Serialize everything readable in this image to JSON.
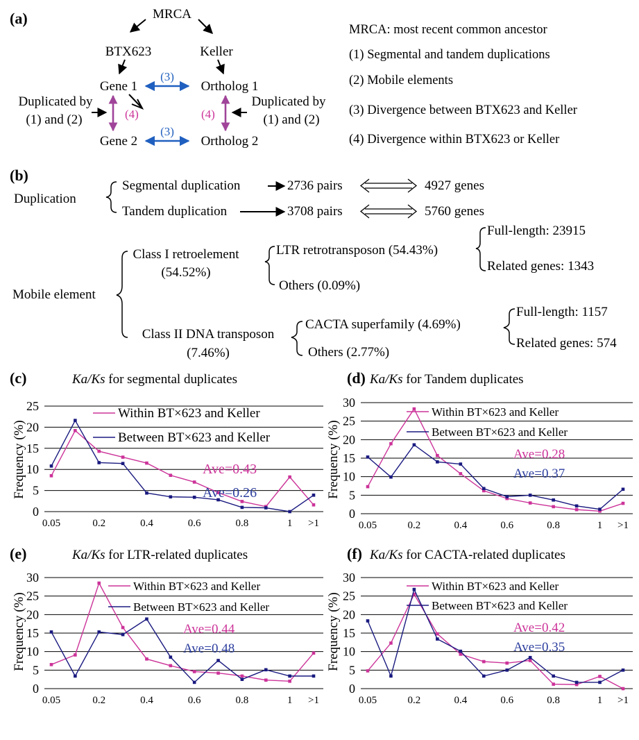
{
  "panel_a": {
    "label": "(a)",
    "mrca": "MRCA",
    "btx": "BTX623",
    "keller": "Keller",
    "gene1": "Gene 1",
    "gene2": "Gene 2",
    "ortholog1": "Ortholog 1",
    "ortholog2": "Ortholog 2",
    "div3_top": "(3)",
    "div3_bottom": "(3)",
    "div4_left": "(4)",
    "div4_right": "(4)",
    "dup_left_1": "Duplicated by",
    "dup_left_2": "(1) and (2)",
    "dup_right_1": "Duplicated by",
    "dup_right_2": "(1) and (2)",
    "legend": [
      "MRCA: most recent common ancestor",
      "(1) Segmental and tandem duplications",
      "(2) Mobile elements",
      "(3) Divergence between BTX623 and Keller",
      "(4) Divergence within BTX623 or Keller"
    ],
    "colors": {
      "blue": "#1f5fbf",
      "magenta": "#a0449a"
    }
  },
  "panel_b": {
    "label": "(b)",
    "duplication": "Duplication",
    "segmental": "Segmental duplication",
    "segmental_pairs": "2736 pairs",
    "segmental_genes": "4927 genes",
    "tandem": "Tandem duplication",
    "tandem_pairs": "3708 pairs",
    "tandem_genes": "5760 genes",
    "mobile": "Mobile element",
    "class1": "Class I retroelement",
    "class1_pct": "(54.52%)",
    "ltr": "LTR retrotransposon (54.43%)",
    "others1": "Others (0.09%)",
    "ltr_full": "Full-length: 23915",
    "ltr_related": "Related genes: 1343",
    "class2": "Class II DNA transposon",
    "class2_pct": "(7.46%)",
    "cacta": "CACTA superfamily (4.69%)",
    "others2": "Others (2.77%)",
    "cacta_full": "Full-length: 1157",
    "cacta_related": "Related genes: 574"
  },
  "chart_data": [
    {
      "type": "line",
      "panel": "(c)",
      "title_italic": "Ka/Ks",
      "title_rest": " for segmental duplicates",
      "ylabel": "Frequency (%)",
      "ylim": [
        0,
        25
      ],
      "yticks": [
        "0",
        "5",
        "10",
        "15",
        "20",
        "25"
      ],
      "categories": [
        "0.05",
        "0.1",
        "0.2",
        "0.3",
        "0.4",
        "0.5",
        "0.6",
        "0.7",
        "0.8",
        "0.9",
        "1",
        ">1"
      ],
      "xtick_labels": [
        "0.05",
        "",
        "0.2",
        "",
        "0.4",
        "",
        "0.6",
        "",
        "0.8",
        "",
        "1",
        ">1"
      ],
      "series": [
        {
          "name": "Within BT×623 and Keller",
          "color": "#cc3399",
          "values": [
            8.5,
            19.2,
            14.3,
            12.9,
            11.5,
            8.6,
            7.0,
            4.5,
            2.4,
            1.2,
            8.2,
            1.6
          ]
        },
        {
          "name": "Between BT×623 and Keller",
          "color": "#1a1a80",
          "values": [
            10.8,
            21.6,
            11.6,
            11.4,
            4.4,
            3.5,
            3.4,
            2.8,
            1.0,
            0.9,
            0.0,
            3.9
          ]
        }
      ],
      "annotations": [
        {
          "text": "Ave=0.43",
          "color": "#cc3399"
        },
        {
          "text": "Ave=0.26",
          "color": "#2c3e9e"
        }
      ]
    },
    {
      "type": "line",
      "panel": "(d)",
      "title_italic": "Ka/Ks",
      "title_rest": " for Tandem duplicates",
      "ylabel": "Frequency (%)",
      "ylim": [
        0,
        30
      ],
      "yticks": [
        "0",
        "5",
        "10",
        "15",
        "20",
        "25",
        "30"
      ],
      "categories": [
        "0.05",
        "0.1",
        "0.2",
        "0.3",
        "0.4",
        "0.5",
        "0.6",
        "0.7",
        "0.8",
        "0.9",
        "1",
        ">1"
      ],
      "xtick_labels": [
        "0.05",
        "",
        "0.2",
        "",
        "0.4",
        "",
        "0.6",
        "",
        "0.8",
        "",
        "1",
        ">1"
      ],
      "series": [
        {
          "name": "Within BT×623 and Keller",
          "color": "#cc3399",
          "values": [
            7.3,
            18.9,
            28.3,
            15.7,
            10.8,
            6.2,
            4.1,
            2.9,
            1.9,
            1.1,
            0.7,
            2.8
          ]
        },
        {
          "name": "Between BT×623 and Keller",
          "color": "#1a1a80",
          "values": [
            15.3,
            9.9,
            18.6,
            14.0,
            13.4,
            6.8,
            4.6,
            5.0,
            3.7,
            2.1,
            1.2,
            6.6
          ]
        }
      ],
      "annotations": [
        {
          "text": "Ave=0.28",
          "color": "#cc3399"
        },
        {
          "text": "Ave=0.37",
          "color": "#2c3e9e"
        }
      ]
    },
    {
      "type": "line",
      "panel": "(e)",
      "title_italic": "Ka/Ks",
      "title_rest": " for LTR-related duplicates",
      "ylabel": "Frequency (%)",
      "ylim": [
        0,
        30
      ],
      "yticks": [
        "0",
        "5",
        "10",
        "15",
        "20",
        "25",
        "30"
      ],
      "categories": [
        "0.05",
        "0.1",
        "0.2",
        "0.3",
        "0.4",
        "0.5",
        "0.6",
        "0.7",
        "0.8",
        "0.9",
        "1",
        ">1"
      ],
      "xtick_labels": [
        "0.05",
        "",
        "0.2",
        "",
        "0.4",
        "",
        "0.6",
        "",
        "0.8",
        "",
        "1",
        ">1"
      ],
      "series": [
        {
          "name": "Within BT×623 and Keller",
          "color": "#cc3399",
          "values": [
            6.5,
            9.1,
            28.5,
            16.5,
            8.0,
            6.2,
            4.6,
            4.2,
            3.4,
            2.3,
            2.0,
            9.6
          ]
        },
        {
          "name": "Between BT×623 and Keller",
          "color": "#1a1a80",
          "values": [
            15.3,
            3.4,
            15.3,
            14.6,
            18.8,
            8.5,
            1.7,
            7.6,
            2.5,
            5.1,
            3.4,
            3.4
          ]
        }
      ],
      "annotations": [
        {
          "text": "Ave=0.44",
          "color": "#cc3399"
        },
        {
          "text": "Ave=0.48",
          "color": "#2c3e9e"
        }
      ]
    },
    {
      "type": "line",
      "panel": "(f)",
      "title_italic": "Ka/Ks",
      "title_rest": " for CACTA-related duplicates",
      "ylabel": "Frequency (%)",
      "ylim": [
        0,
        30
      ],
      "yticks": [
        "0",
        "5",
        "10",
        "15",
        "20",
        "25",
        "30"
      ],
      "categories": [
        "0.05",
        "0.1",
        "0.2",
        "0.3",
        "0.4",
        "0.5",
        "0.6",
        "0.7",
        "0.8",
        "0.9",
        "1",
        ">1"
      ],
      "xtick_labels": [
        "0.05",
        "",
        "0.2",
        "",
        "0.4",
        "",
        "0.6",
        "",
        "0.8",
        "",
        "1",
        ">1"
      ],
      "series": [
        {
          "name": "Within BT×623 and Keller",
          "color": "#cc3399",
          "values": [
            4.8,
            12.3,
            25.5,
            14.8,
            9.3,
            7.3,
            6.9,
            7.6,
            1.2,
            1.1,
            3.3,
            0.0
          ]
        },
        {
          "name": "Between BT×623 and Keller",
          "color": "#1a1a80",
          "values": [
            18.3,
            3.4,
            26.8,
            13.4,
            10.1,
            3.4,
            5.0,
            8.4,
            3.4,
            1.7,
            1.7,
            5.0
          ]
        }
      ],
      "annotations": [
        {
          "text": "Ave=0.42",
          "color": "#cc3399"
        },
        {
          "text": "Ave=0.35",
          "color": "#2c3e9e"
        }
      ]
    }
  ]
}
